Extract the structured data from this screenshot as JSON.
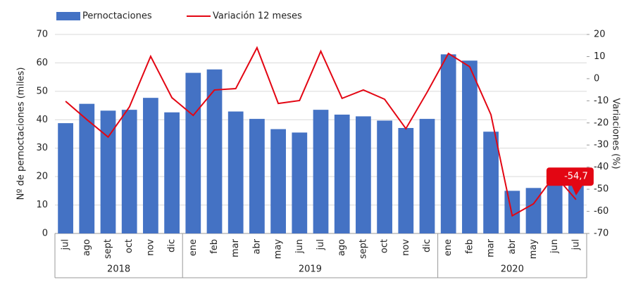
{
  "chart_data": {
    "type": "bar-line",
    "y_label": "Nº de pernoctaciones (miles)",
    "y2_label": "Variaciones (%)",
    "category_groups": [
      {
        "label": "2018",
        "categories": [
          "jul",
          "ago",
          "sept",
          "oct",
          "nov",
          "dic"
        ]
      },
      {
        "label": "2019",
        "categories": [
          "ene",
          "feb",
          "mar",
          "abr",
          "may",
          "jun",
          "jul",
          "ago",
          "sept",
          "oct",
          "nov",
          "dic"
        ]
      },
      {
        "label": "2020",
        "categories": [
          "ene",
          "feb",
          "mar",
          "abr",
          "may",
          "jun",
          "jul"
        ]
      }
    ],
    "series": [
      {
        "name": "Pernoctaciones",
        "type": "bar",
        "color": "#4472c4",
        "values": [
          38.8,
          45.6,
          43.2,
          43.5,
          47.7,
          42.6,
          56.5,
          57.7,
          42.9,
          40.3,
          36.7,
          35.5,
          43.5,
          41.8,
          41.2,
          39.7,
          37.1,
          40.3,
          63,
          60.8,
          35.8,
          15,
          16,
          20.6,
          19.8
        ]
      },
      {
        "name": "Variación 12 meses",
        "type": "line",
        "axis": "y2",
        "color": "#e30613",
        "values": [
          -10.2,
          -18.5,
          -26.4,
          -12.8,
          10.1,
          -8.6,
          -16.6,
          -5.1,
          -4.5,
          14,
          -11.2,
          -9.9,
          12.4,
          -8.9,
          -5.1,
          -9.3,
          -22.6,
          -6.1,
          11.4,
          5.4,
          -16.3,
          -62,
          -56.6,
          -43.6,
          -54.7
        ],
        "value_labels": [
          null,
          null,
          null,
          null,
          null,
          null,
          null,
          null,
          null,
          null,
          null,
          null,
          null,
          null,
          null,
          null,
          null,
          null,
          null,
          null,
          null,
          null,
          null,
          null,
          "-54,7"
        ]
      }
    ],
    "ylim": [
      0,
      70
    ],
    "yticks": [
      0,
      10,
      20,
      30,
      40,
      50,
      60,
      70
    ],
    "y2lim": [
      -70,
      20
    ],
    "y2ticks": [
      -70,
      -60,
      -50,
      -40,
      -30,
      -20,
      -10,
      0,
      10,
      20
    ],
    "grid": true,
    "legend": "top-left"
  }
}
